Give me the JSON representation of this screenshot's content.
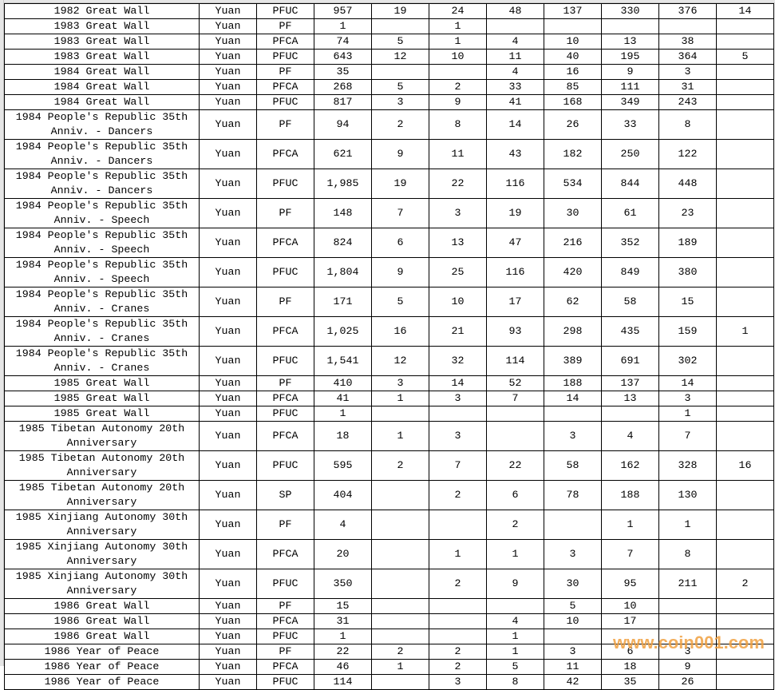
{
  "watermark": "www.coin001.com",
  "rows": [
    [
      "1982 Great Wall",
      "Yuan",
      "PFUC",
      "957",
      "19",
      "24",
      "48",
      "137",
      "330",
      "376",
      "14"
    ],
    [
      "1983 Great Wall",
      "Yuan",
      "PF",
      "1",
      "",
      "1",
      "",
      "",
      "",
      "",
      ""
    ],
    [
      "1983 Great Wall",
      "Yuan",
      "PFCA",
      "74",
      "5",
      "1",
      "4",
      "10",
      "13",
      "38",
      ""
    ],
    [
      "1983 Great Wall",
      "Yuan",
      "PFUC",
      "643",
      "12",
      "10",
      "11",
      "40",
      "195",
      "364",
      "5"
    ],
    [
      "1984 Great Wall",
      "Yuan",
      "PF",
      "35",
      "",
      "",
      "4",
      "16",
      "9",
      "3",
      ""
    ],
    [
      "1984 Great Wall",
      "Yuan",
      "PFCA",
      "268",
      "5",
      "2",
      "33",
      "85",
      "111",
      "31",
      ""
    ],
    [
      "1984 Great Wall",
      "Yuan",
      "PFUC",
      "817",
      "3",
      "9",
      "41",
      "168",
      "349",
      "243",
      ""
    ],
    [
      "1984 People's Republic 35th Anniv. - Dancers",
      "Yuan",
      "PF",
      "94",
      "2",
      "8",
      "14",
      "26",
      "33",
      "8",
      ""
    ],
    [
      "1984 People's Republic 35th Anniv. - Dancers",
      "Yuan",
      "PFCA",
      "621",
      "9",
      "11",
      "43",
      "182",
      "250",
      "122",
      ""
    ],
    [
      "1984 People's Republic 35th Anniv. - Dancers",
      "Yuan",
      "PFUC",
      "1,985",
      "19",
      "22",
      "116",
      "534",
      "844",
      "448",
      ""
    ],
    [
      "1984 People's Republic 35th Anniv. - Speech",
      "Yuan",
      "PF",
      "148",
      "7",
      "3",
      "19",
      "30",
      "61",
      "23",
      ""
    ],
    [
      "1984 People's Republic 35th Anniv. - Speech",
      "Yuan",
      "PFCA",
      "824",
      "6",
      "13",
      "47",
      "216",
      "352",
      "189",
      ""
    ],
    [
      "1984 People's Republic 35th Anniv. - Speech",
      "Yuan",
      "PFUC",
      "1,804",
      "9",
      "25",
      "116",
      "420",
      "849",
      "380",
      ""
    ],
    [
      "1984 People's Republic 35th Anniv. - Cranes",
      "Yuan",
      "PF",
      "171",
      "5",
      "10",
      "17",
      "62",
      "58",
      "15",
      ""
    ],
    [
      "1984 People's Republic 35th Anniv. - Cranes",
      "Yuan",
      "PFCA",
      "1,025",
      "16",
      "21",
      "93",
      "298",
      "435",
      "159",
      "1"
    ],
    [
      "1984 People's Republic 35th Anniv. - Cranes",
      "Yuan",
      "PFUC",
      "1,541",
      "12",
      "32",
      "114",
      "389",
      "691",
      "302",
      ""
    ],
    [
      "1985 Great Wall",
      "Yuan",
      "PF",
      "410",
      "3",
      "14",
      "52",
      "188",
      "137",
      "14",
      ""
    ],
    [
      "1985 Great Wall",
      "Yuan",
      "PFCA",
      "41",
      "1",
      "3",
      "7",
      "14",
      "13",
      "3",
      ""
    ],
    [
      "1985 Great Wall",
      "Yuan",
      "PFUC",
      "1",
      "",
      "",
      "",
      "",
      "",
      "1",
      ""
    ],
    [
      "1985 Tibetan Autonomy 20th Anniversary",
      "Yuan",
      "PFCA",
      "18",
      "1",
      "3",
      "",
      "3",
      "4",
      "7",
      ""
    ],
    [
      "1985 Tibetan Autonomy 20th Anniversary",
      "Yuan",
      "PFUC",
      "595",
      "2",
      "7",
      "22",
      "58",
      "162",
      "328",
      "16"
    ],
    [
      "1985 Tibetan Autonomy 20th Anniversary",
      "Yuan",
      "SP",
      "404",
      "",
      "2",
      "6",
      "78",
      "188",
      "130",
      ""
    ],
    [
      "1985 Xinjiang Autonomy 30th Anniversary",
      "Yuan",
      "PF",
      "4",
      "",
      "",
      "2",
      "",
      "1",
      "1",
      ""
    ],
    [
      "1985 Xinjiang Autonomy 30th Anniversary",
      "Yuan",
      "PFCA",
      "20",
      "",
      "1",
      "1",
      "3",
      "7",
      "8",
      ""
    ],
    [
      "1985 Xinjiang Autonomy 30th Anniversary",
      "Yuan",
      "PFUC",
      "350",
      "",
      "2",
      "9",
      "30",
      "95",
      "211",
      "2"
    ],
    [
      "1986 Great Wall",
      "Yuan",
      "PF",
      "15",
      "",
      "",
      "",
      "5",
      "10",
      "",
      ""
    ],
    [
      "1986 Great Wall",
      "Yuan",
      "PFCA",
      "31",
      "",
      "",
      "4",
      "10",
      "17",
      "",
      ""
    ],
    [
      "1986 Great Wall",
      "Yuan",
      "PFUC",
      "1",
      "",
      "",
      "1",
      "",
      "",
      "",
      ""
    ],
    [
      "1986 Year of Peace",
      "Yuan",
      "PF",
      "22",
      "2",
      "2",
      "1",
      "3",
      "6",
      "3",
      ""
    ],
    [
      "1986 Year of Peace",
      "Yuan",
      "PFCA",
      "46",
      "1",
      "2",
      "5",
      "11",
      "18",
      "9",
      ""
    ],
    [
      "1986 Year of Peace",
      "Yuan",
      "PFUC",
      "114",
      "",
      "3",
      "8",
      "42",
      "35",
      "26",
      ""
    ]
  ]
}
